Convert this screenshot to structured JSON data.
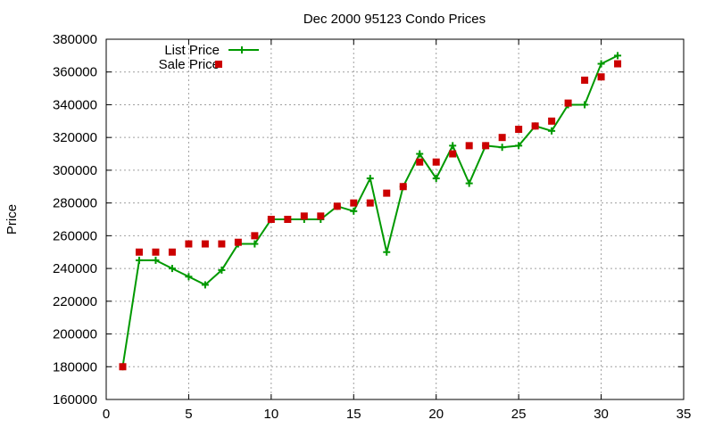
{
  "chart_data": {
    "type": "line",
    "title": "Dec 2000 95123 Condo Prices",
    "xlabel": "",
    "ylabel": "Price",
    "xlim": [
      0,
      35
    ],
    "ylim": [
      160000,
      380000
    ],
    "xticks": [
      0,
      5,
      10,
      15,
      20,
      25,
      30,
      35
    ],
    "yticks": [
      160000,
      180000,
      200000,
      220000,
      240000,
      260000,
      280000,
      300000,
      320000,
      340000,
      360000,
      380000
    ],
    "grid": true,
    "legend_position": "top-left",
    "series": [
      {
        "name": "List Price",
        "style": "lines-and-plus-points",
        "color": "#009900",
        "x": [
          1,
          2,
          3,
          4,
          5,
          6,
          7,
          8,
          9,
          10,
          11,
          12,
          13,
          14,
          15,
          16,
          17,
          18,
          19,
          20,
          21,
          22,
          23,
          24,
          25,
          26,
          27,
          28,
          29,
          30,
          31
        ],
        "y": [
          180000,
          245000,
          245000,
          240000,
          235000,
          230000,
          239000,
          255000,
          255000,
          270000,
          270000,
          270000,
          270000,
          278000,
          275000,
          295000,
          250000,
          290000,
          310000,
          295000,
          315000,
          292000,
          315000,
          314000,
          315000,
          327000,
          324000,
          340000,
          340000,
          365000,
          370000
        ]
      },
      {
        "name": "Sale Price",
        "style": "square-points",
        "color": "#cc0000",
        "x": [
          1,
          2,
          3,
          4,
          5,
          6,
          7,
          8,
          9,
          10,
          11,
          12,
          13,
          14,
          15,
          16,
          17,
          18,
          19,
          20,
          21,
          22,
          23,
          24,
          25,
          26,
          27,
          28,
          29,
          30,
          31
        ],
        "y": [
          180000,
          250000,
          250000,
          250000,
          255000,
          255000,
          255000,
          256000,
          260000,
          270000,
          270000,
          272000,
          272000,
          278000,
          280000,
          280000,
          286000,
          290000,
          305000,
          305000,
          310000,
          315000,
          315000,
          320000,
          325000,
          327000,
          330000,
          341000,
          355000,
          357000,
          365000
        ]
      }
    ]
  }
}
